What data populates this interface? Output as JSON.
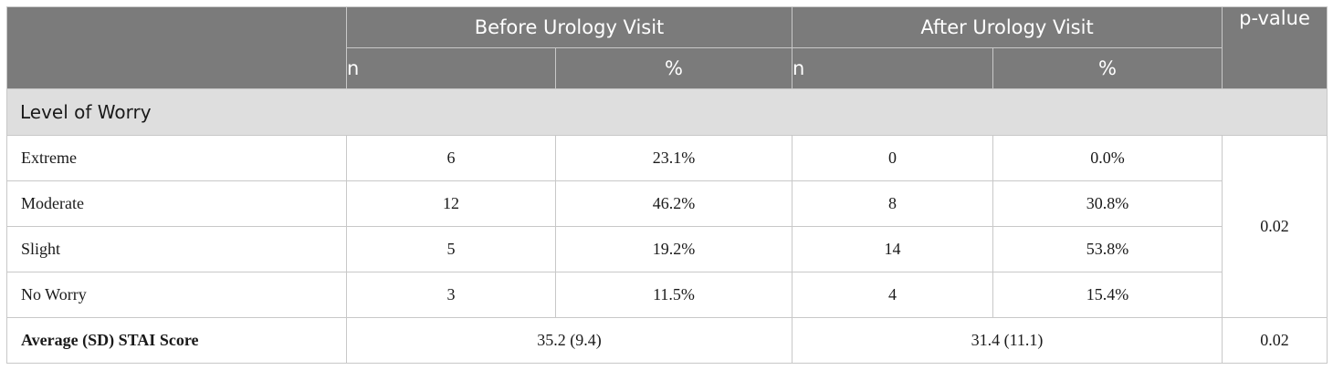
{
  "header": {
    "stub": "",
    "before_group": "Before Urology Visit",
    "after_group": "After Urology Visit",
    "pvalue": "p-value",
    "n": "n",
    "pct": "%"
  },
  "section": {
    "title": "Level of Worry"
  },
  "rows": [
    {
      "label": "Extreme",
      "before_n": "6",
      "before_pct": "23.1%",
      "after_n": "0",
      "after_pct": "0.0%"
    },
    {
      "label": "Moderate",
      "before_n": "12",
      "before_pct": "46.2%",
      "after_n": "8",
      "after_pct": "30.8%"
    },
    {
      "label": "Slight",
      "before_n": "5",
      "before_pct": "19.2%",
      "after_n": "14",
      "after_pct": "53.8%"
    },
    {
      "label": "No Worry",
      "before_n": "3",
      "before_pct": "11.5%",
      "after_n": "4",
      "after_pct": "15.4%"
    }
  ],
  "worry_pvalue": "0.02",
  "stai": {
    "label": "Average (SD) STAI Score",
    "before": "35.2 (9.4)",
    "after": "31.4 (11.1)",
    "pvalue": "0.02"
  },
  "colors": {
    "header_bg": "#7b7b7b",
    "section_bg": "#dedede",
    "border": "#c8c8c8"
  }
}
